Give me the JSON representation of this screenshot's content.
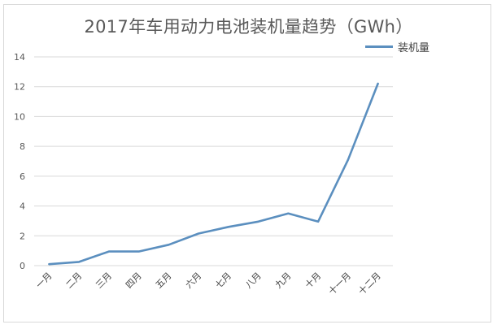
{
  "chart_data": {
    "type": "line",
    "title": "2017年车用动力电池装机量趋势（GWh）",
    "xlabel": "",
    "ylabel": "",
    "categories": [
      "一月",
      "二月",
      "三月",
      "四月",
      "五月",
      "六月",
      "七月",
      "八月",
      "九月",
      "十月",
      "十一月",
      "十二月"
    ],
    "series": [
      {
        "name": "装机量",
        "color": "#5b8fbf",
        "values": [
          0.1,
          0.25,
          0.95,
          0.95,
          1.4,
          2.15,
          2.6,
          2.95,
          3.5,
          2.95,
          7.1,
          12.2
        ]
      }
    ],
    "ylim": [
      0,
      14
    ],
    "yticks": [
      0,
      2,
      4,
      6,
      8,
      10,
      12,
      14
    ],
    "grid": true,
    "legend_position": "top-right"
  },
  "title": "2017年车用动力电池装机量趋势（GWh）",
  "legend": {
    "label": "装机量"
  }
}
